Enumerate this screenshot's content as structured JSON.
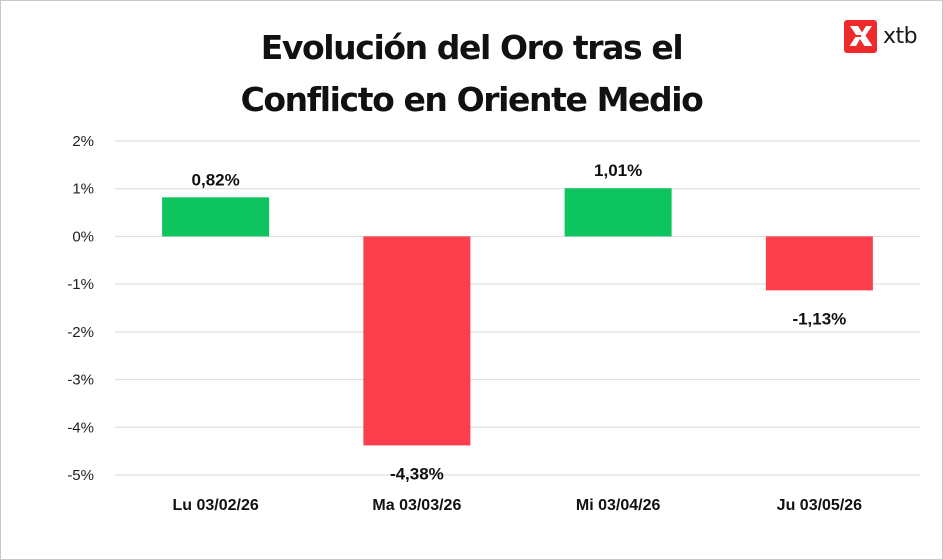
{
  "brand": {
    "logo_text": "xtb",
    "logo_color": "#ee2a2a",
    "logo_icon": "xtb-x-logo-icon"
  },
  "chart_data": {
    "type": "bar",
    "title_line1": "Evolución del Oro tras el",
    "title_line2": "Conflicto en Oriente Medio",
    "categories": [
      "Lu 03/02/26",
      "Ma 03/03/26",
      "Mi 03/04/26",
      "Ju 03/05/26"
    ],
    "values": [
      0.82,
      -4.38,
      1.01,
      -1.13
    ],
    "data_labels": [
      "0,82%",
      "-4,38%",
      "1,01%",
      "-1,13%"
    ],
    "y_ticks": [
      2,
      1,
      0,
      -1,
      -2,
      -3,
      -4,
      -5
    ],
    "y_tick_labels": [
      "2%",
      "1%",
      "0%",
      "-1%",
      "-2%",
      "-3%",
      "-4%",
      "-5%"
    ],
    "ylim": [
      -5,
      2
    ],
    "xlabel": "",
    "ylabel": "",
    "grid": true,
    "legend": "none",
    "colors": {
      "positive": "#0dc45f",
      "negative": "#fb3f4c",
      "grid": "#d9d9d9"
    }
  }
}
